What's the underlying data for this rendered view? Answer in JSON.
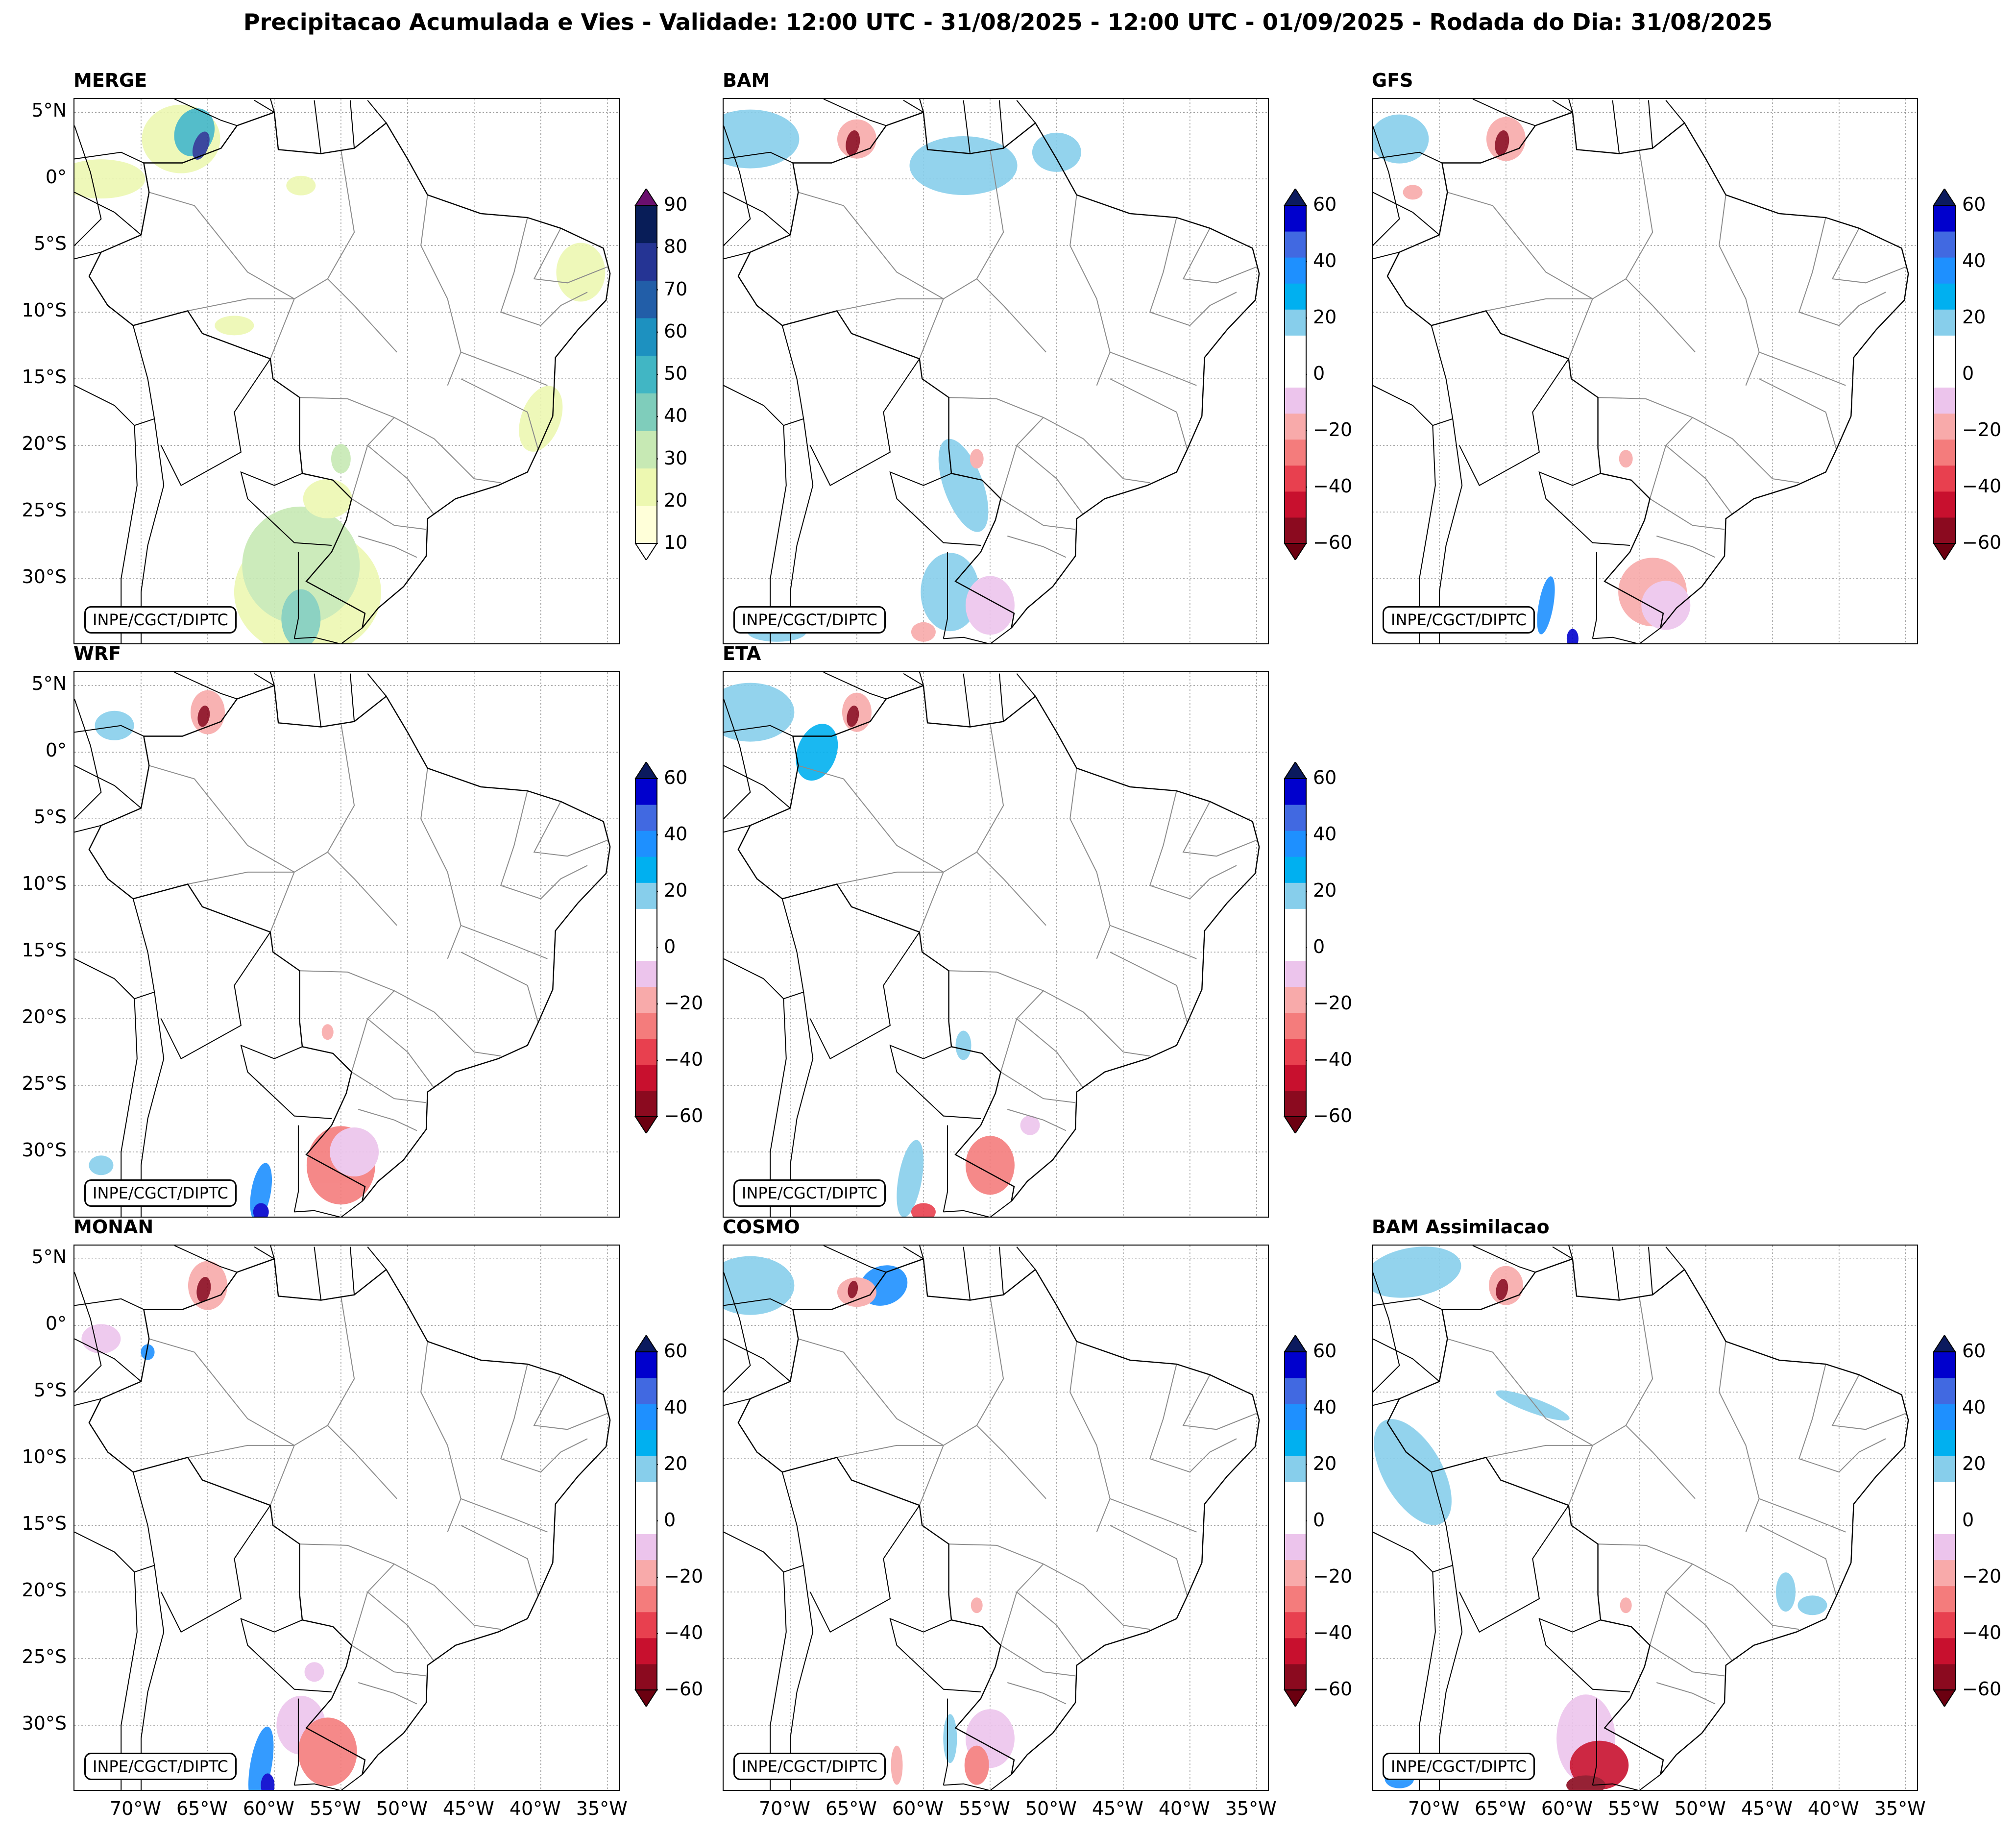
{
  "title": "Precipitacao Acumulada e Vies - Validade: 12:00 UTC - 31/08/2025 - 12:00 UTC - 01/09/2025 - Rodada do Dia: 31/08/2025",
  "credit": "INPE/CGCT/DIPTC",
  "lat_ticks": [
    "5°N",
    "0°",
    "5°S",
    "10°S",
    "15°S",
    "20°S",
    "25°S",
    "30°S"
  ],
  "lon_ticks": [
    "70°W",
    "65°W",
    "60°W",
    "55°W",
    "50°W",
    "45°W",
    "40°W",
    "35°W"
  ],
  "panels": [
    {
      "id": "merge",
      "label": "MERGE",
      "scale": "precip"
    },
    {
      "id": "bam",
      "label": "BAM",
      "scale": "bias"
    },
    {
      "id": "gfs",
      "label": "GFS",
      "scale": "bias"
    },
    {
      "id": "wrf",
      "label": "WRF",
      "scale": "bias"
    },
    {
      "id": "eta",
      "label": "ETA",
      "scale": "bias"
    },
    {
      "id": "monan",
      "label": "MONAN",
      "scale": "bias"
    },
    {
      "id": "cosmo",
      "label": "COSMO",
      "scale": "bias"
    },
    {
      "id": "bam-assim",
      "label": "BAM Assimilacao",
      "scale": "bias"
    }
  ],
  "precip_scale": {
    "ticks": [
      "90",
      "80",
      "70",
      "60",
      "50",
      "40",
      "30",
      "20",
      "10"
    ],
    "colors": [
      "#ffffd9",
      "#edf8b1",
      "#c7e9b4",
      "#7fcdbb",
      "#41b6c4",
      "#1d91c0",
      "#225ea8",
      "#253494",
      "#081d58"
    ],
    "over_color": "#6a0f6e",
    "under_color": "#ffffff"
  },
  "bias_scale": {
    "ticks": [
      "60",
      "40",
      "20",
      "0",
      "−20",
      "−40",
      "−60"
    ],
    "colors": [
      "#8b0a1f",
      "#c8102e",
      "#e8404f",
      "#f47c7c",
      "#f8aaaa",
      "#ecc4ec",
      "#ffffff",
      "#ffffff",
      "#87ceeb",
      "#00b0f0",
      "#1e90ff",
      "#4169e1",
      "#0000cd"
    ],
    "over_color": "#0b1a5e",
    "under_color": "#6b0010"
  }
}
